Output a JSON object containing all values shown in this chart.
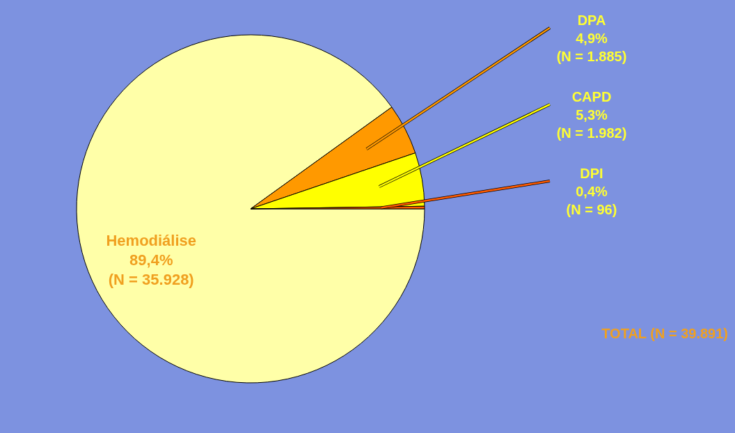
{
  "chart_data": {
    "type": "pie",
    "categories": [
      "Hemodiálise",
      "DPA",
      "CAPD",
      "DPI"
    ],
    "values": [
      35928,
      1885,
      1982,
      96
    ],
    "value_labels": [
      "89,4%\n(N = 35.928)",
      "4,9%\n(N = 1.885)",
      "5,3%\n(N = 1.982)",
      "0,4%\n(N = 96)"
    ],
    "colors": [
      "#ffffa8",
      "#ff9900",
      "#ffff00",
      "#ff5a00"
    ],
    "annotations": [
      "TOTAL (N = 39.891)"
    ]
  }
}
